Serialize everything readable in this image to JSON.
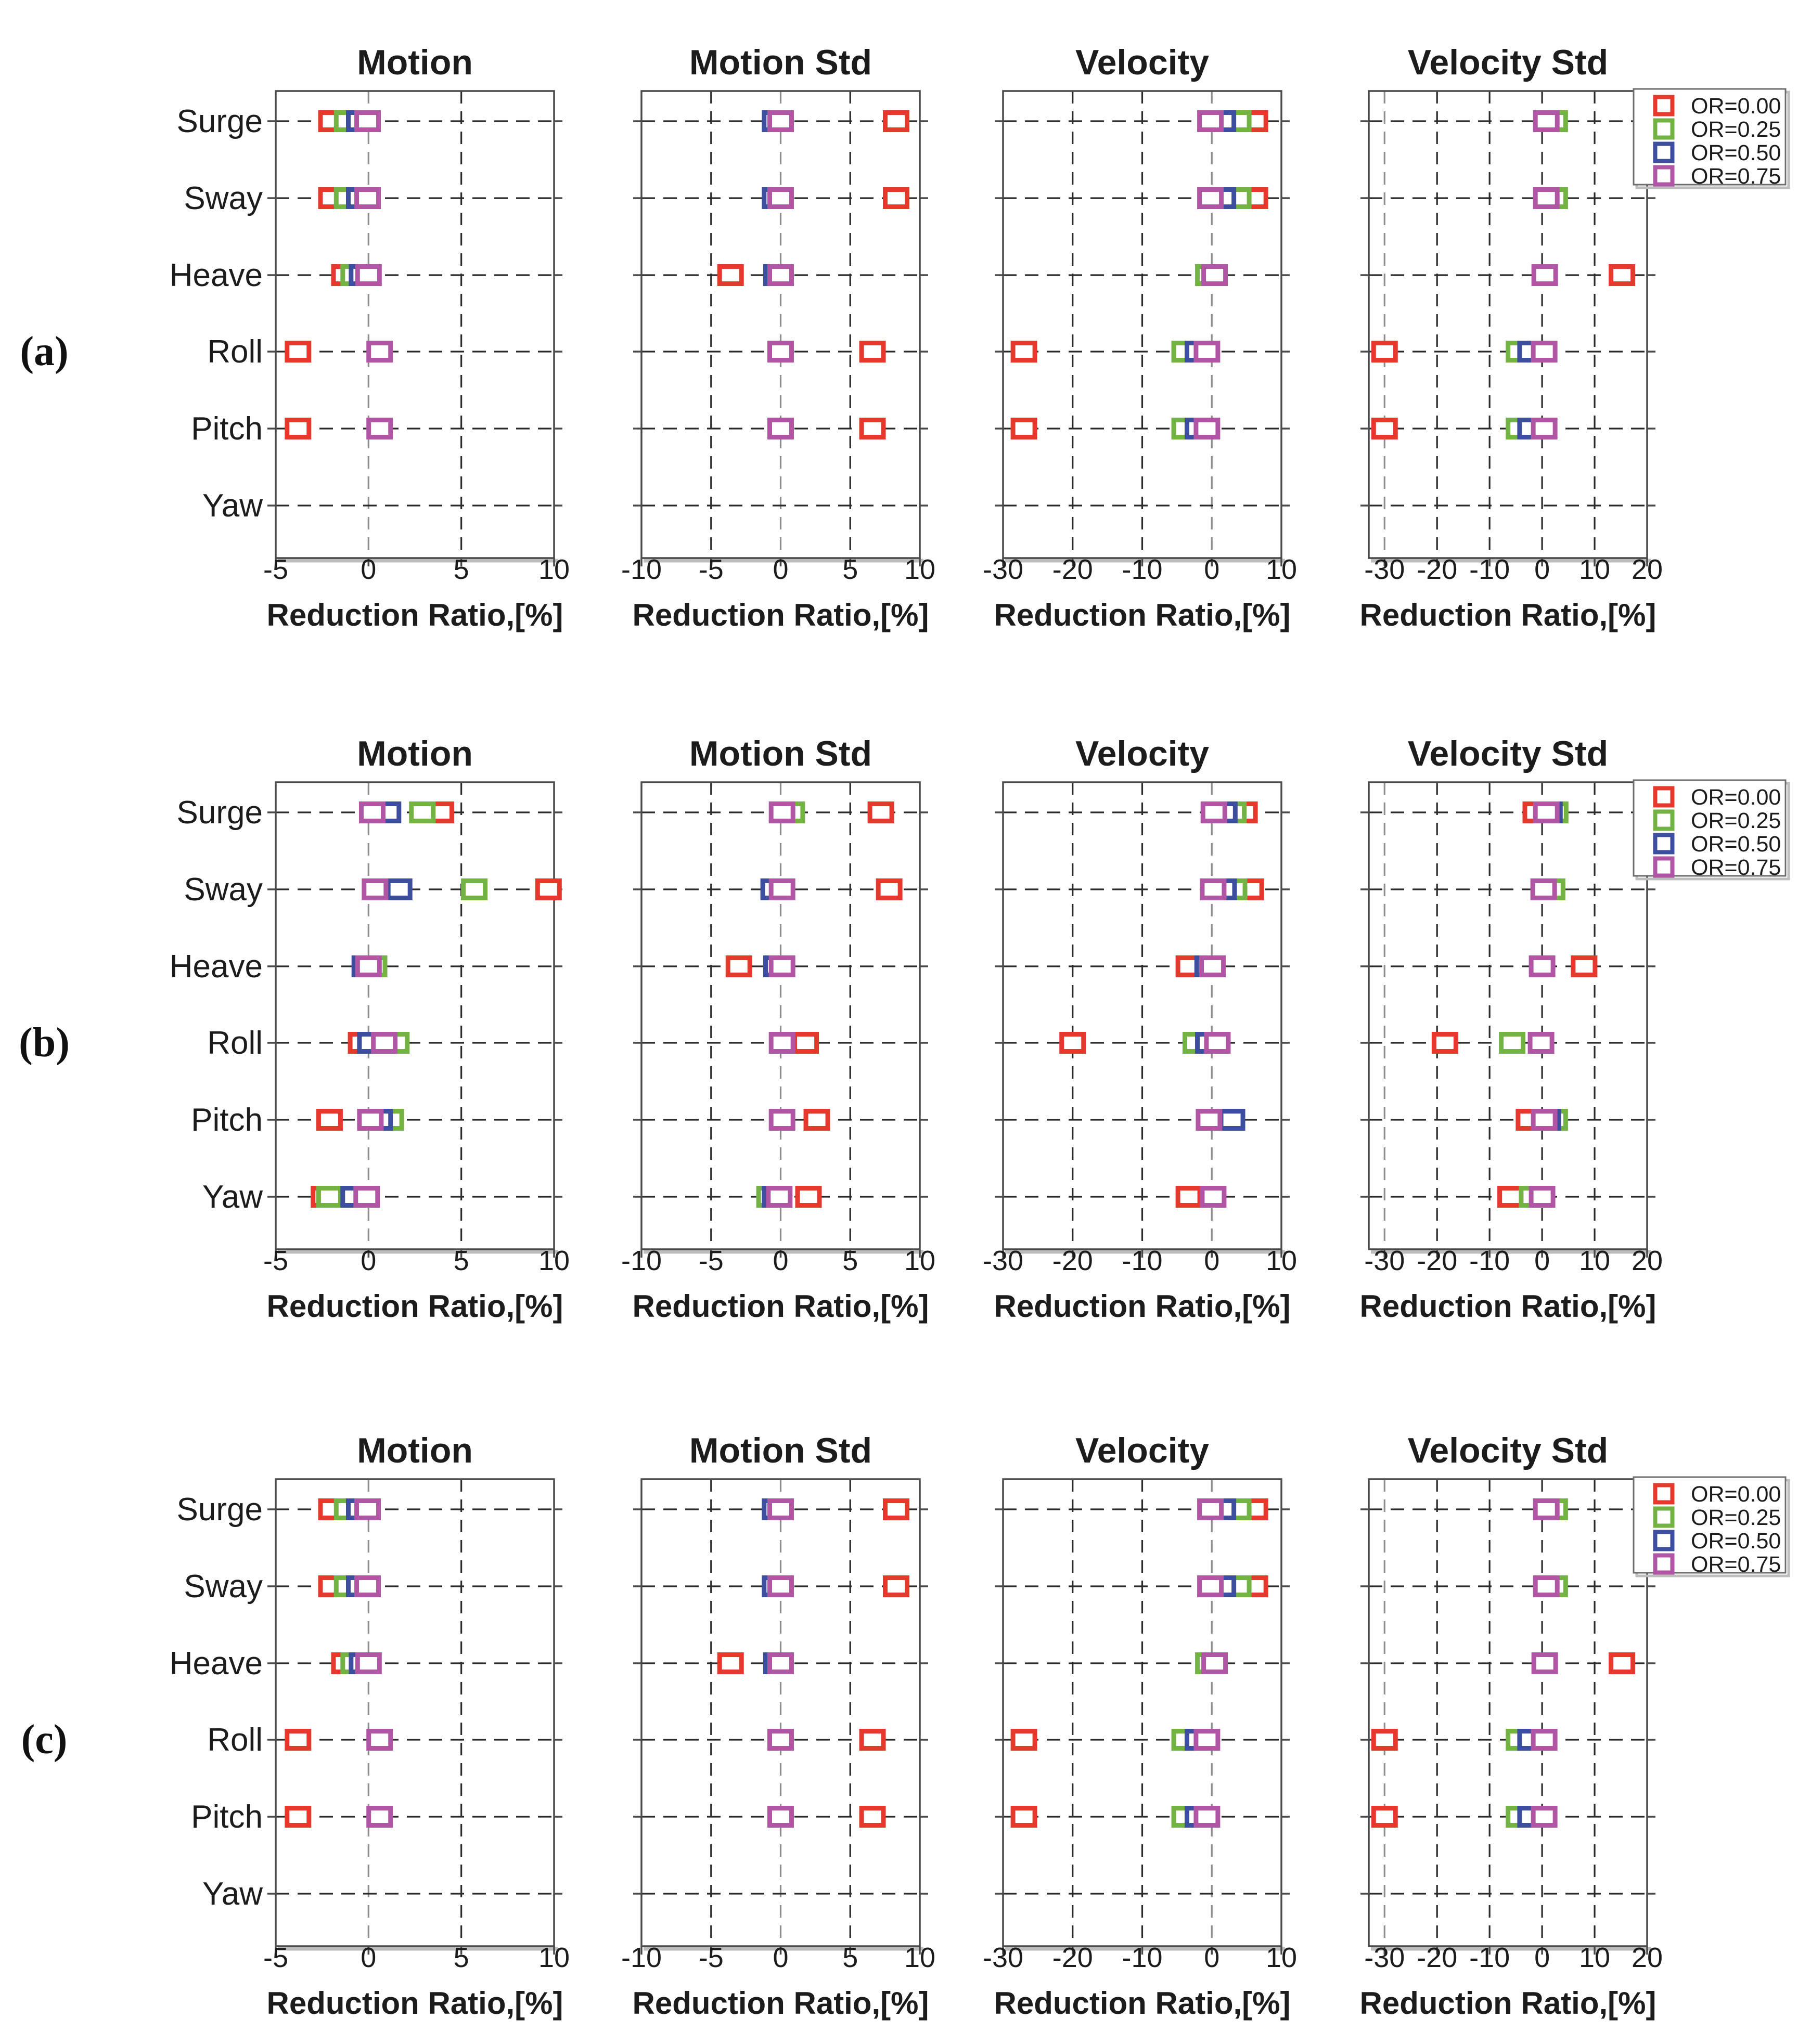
{
  "figure_title": "",
  "xlabel": "Reduction Ratio,[%]",
  "categories": [
    "Surge",
    "Sway",
    "Heave",
    "Roll",
    "Pitch",
    "Yaw"
  ],
  "series": [
    {
      "label": "OR=0.00",
      "color": "#e6392e"
    },
    {
      "label": "OR=0.25",
      "color": "#72b344"
    },
    {
      "label": "OR=0.50",
      "color": "#3d4e9e"
    },
    {
      "label": "OR=0.75",
      "color": "#b156a4"
    }
  ],
  "colors": {
    "axis": "#4a4a4a",
    "grid_black": "#2b2b2b",
    "grid_gray": "#8e8e8e",
    "text": "#1c1c1c",
    "legend_border": "#6e6e6e",
    "legend_shadow": "#bdbdbd",
    "marker_fill": "#ffffff",
    "background": "#ffffff"
  },
  "chart_data": [
    {
      "row_label": "(a)",
      "type": "scatter",
      "panels": [
        {
          "title": "Motion",
          "xlim": [
            -5,
            10
          ],
          "xticks": [
            -5,
            0,
            5,
            10
          ],
          "grid_black": [
            5
          ],
          "grid_gray": [
            0
          ],
          "points": {
            "Surge": [
              -2.0,
              -1.15,
              -0.5,
              -0.05
            ],
            "Sway": [
              -2.0,
              -1.15,
              -0.5,
              -0.05
            ],
            "Heave": [
              -1.3,
              -0.8,
              -0.35,
              0.0
            ],
            "Roll": [
              -3.8,
              null,
              null,
              0.6
            ],
            "Pitch": [
              -3.8,
              null,
              null,
              0.6
            ],
            "Yaw": [
              null,
              null,
              null,
              null
            ]
          }
        },
        {
          "title": "Motion Std",
          "xlim": [
            -10,
            10
          ],
          "xticks": [
            -10,
            -5,
            0,
            5,
            10
          ],
          "grid_black": [
            -5,
            5
          ],
          "grid_gray": [
            0
          ],
          "points": {
            "Surge": [
              8.3,
              null,
              -0.4,
              0.0
            ],
            "Sway": [
              8.3,
              null,
              -0.4,
              0.0
            ],
            "Heave": [
              -3.6,
              null,
              -0.3,
              0.0
            ],
            "Roll": [
              6.6,
              null,
              null,
              0.0
            ],
            "Pitch": [
              6.6,
              null,
              null,
              0.0
            ],
            "Yaw": [
              null,
              null,
              null,
              null
            ]
          }
        },
        {
          "title": "Velocity",
          "xlim": [
            -30,
            10
          ],
          "xticks": [
            -30,
            -20,
            -10,
            0,
            10
          ],
          "grid_black": [
            -20,
            -10
          ],
          "grid_gray": [
            0
          ],
          "points": {
            "Surge": [
              6.2,
              3.8,
              1.6,
              -0.2
            ],
            "Sway": [
              6.2,
              3.8,
              1.6,
              -0.2
            ],
            "Heave": [
              null,
              -0.5,
              null,
              0.4
            ],
            "Roll": [
              -27.0,
              -3.9,
              -2.0,
              -0.7
            ],
            "Pitch": [
              -27.0,
              -3.9,
              -2.0,
              -0.7
            ],
            "Yaw": [
              null,
              null,
              null,
              null
            ]
          }
        },
        {
          "title": "Velocity Std",
          "xlim": [
            -33,
            20
          ],
          "xticks": [
            -30,
            -20,
            -10,
            0,
            10,
            20
          ],
          "grid_black": [
            -20,
            -10,
            0,
            10
          ],
          "grid_gray": [
            -30
          ],
          "points": {
            "Surge": [
              null,
              2.4,
              null,
              0.8
            ],
            "Sway": [
              null,
              2.4,
              null,
              0.8
            ],
            "Heave": [
              15.2,
              null,
              null,
              0.5
            ],
            "Roll": [
              -30.0,
              -4.4,
              -2.2,
              0.4
            ],
            "Pitch": [
              -30.0,
              -4.4,
              -2.2,
              0.4
            ],
            "Yaw": [
              null,
              null,
              null,
              null
            ]
          }
        }
      ]
    },
    {
      "row_label": "(b)",
      "type": "scatter",
      "panels": [
        {
          "title": "Motion",
          "xlim": [
            -5,
            10
          ],
          "xticks": [
            -5,
            0,
            5,
            10
          ],
          "grid_black": [
            5
          ],
          "grid_gray": [
            0
          ],
          "points": {
            "Surge": [
              3.9,
              2.9,
              1.05,
              0.2
            ],
            "Sway": [
              9.7,
              5.7,
              1.65,
              0.35
            ],
            "Heave": [
              null,
              0.3,
              -0.2,
              0.0
            ],
            "Roll": [
              -0.4,
              1.5,
              0.1,
              0.85
            ],
            "Pitch": [
              -2.1,
              1.2,
              0.6,
              0.1
            ],
            "Yaw": [
              -2.4,
              -2.1,
              -0.8,
              -0.1
            ]
          }
        },
        {
          "title": "Motion Std",
          "xlim": [
            -10,
            10
          ],
          "xticks": [
            -10,
            -5,
            0,
            5,
            10
          ],
          "grid_black": [
            -5,
            5
          ],
          "grid_gray": [
            0
          ],
          "points": {
            "Surge": [
              7.2,
              0.8,
              null,
              0.1
            ],
            "Sway": [
              7.8,
              null,
              -0.5,
              0.1
            ],
            "Heave": [
              -3.0,
              null,
              -0.3,
              0.1
            ],
            "Roll": [
              1.8,
              null,
              null,
              0.1
            ],
            "Pitch": [
              2.6,
              null,
              null,
              0.1
            ],
            "Yaw": [
              2.0,
              -0.8,
              -0.4,
              -0.1
            ]
          }
        },
        {
          "title": "Velocity",
          "xlim": [
            -30,
            10
          ],
          "xticks": [
            -30,
            -20,
            -10,
            0,
            10
          ],
          "grid_black": [
            -20,
            -10
          ],
          "grid_gray": [
            0
          ],
          "points": {
            "Surge": [
              4.7,
              3.1,
              1.8,
              0.3
            ],
            "Sway": [
              5.6,
              3.2,
              1.7,
              0.2
            ],
            "Heave": [
              -3.3,
              null,
              -0.6,
              0.1
            ],
            "Roll": [
              -20.0,
              -2.3,
              -0.5,
              0.8
            ],
            "Pitch": [
              null,
              null,
              2.9,
              -0.4
            ],
            "Yaw": [
              -3.3,
              null,
              null,
              0.2
            ]
          }
        },
        {
          "title": "Velocity Std",
          "xlim": [
            -33,
            20
          ],
          "xticks": [
            -30,
            -20,
            -10,
            0,
            10,
            20
          ],
          "grid_black": [
            -20,
            -10,
            0,
            10
          ],
          "grid_gray": [
            -30
          ],
          "points": {
            "Surge": [
              -1.2,
              2.5,
              1.4,
              0.8
            ],
            "Sway": [
              null,
              1.9,
              null,
              0.3
            ],
            "Heave": [
              8.0,
              null,
              null,
              0.0
            ],
            "Roll": [
              -18.5,
              -5.7,
              null,
              -0.2
            ],
            "Pitch": [
              -2.5,
              2.4,
              1.1,
              0.4
            ],
            "Yaw": [
              -6.0,
              -1.9,
              null,
              0.0
            ]
          }
        }
      ]
    },
    {
      "row_label": "(c)",
      "type": "scatter",
      "panels": [
        {
          "title": "Motion",
          "xlim": [
            -5,
            10
          ],
          "xticks": [
            -5,
            0,
            5,
            10
          ],
          "grid_black": [
            5
          ],
          "grid_gray": [
            0
          ],
          "points": {
            "Surge": [
              -2.0,
              -1.15,
              -0.5,
              -0.05
            ],
            "Sway": [
              -2.0,
              -1.15,
              -0.5,
              -0.05
            ],
            "Heave": [
              -1.3,
              -0.8,
              -0.35,
              0.0
            ],
            "Roll": [
              -3.8,
              null,
              null,
              0.6
            ],
            "Pitch": [
              -3.8,
              null,
              null,
              0.6
            ],
            "Yaw": [
              null,
              null,
              null,
              null
            ]
          }
        },
        {
          "title": "Motion Std",
          "xlim": [
            -10,
            10
          ],
          "xticks": [
            -10,
            -5,
            0,
            5,
            10
          ],
          "grid_black": [
            -5,
            5
          ],
          "grid_gray": [
            0
          ],
          "points": {
            "Surge": [
              8.3,
              null,
              -0.4,
              0.0
            ],
            "Sway": [
              8.3,
              null,
              -0.4,
              0.0
            ],
            "Heave": [
              -3.6,
              null,
              -0.3,
              0.0
            ],
            "Roll": [
              6.6,
              null,
              null,
              0.0
            ],
            "Pitch": [
              6.6,
              null,
              null,
              0.0
            ],
            "Yaw": [
              null,
              null,
              null,
              null
            ]
          }
        },
        {
          "title": "Velocity",
          "xlim": [
            -30,
            10
          ],
          "xticks": [
            -30,
            -20,
            -10,
            0,
            10
          ],
          "grid_black": [
            -20,
            -10
          ],
          "grid_gray": [
            0
          ],
          "points": {
            "Surge": [
              6.2,
              3.8,
              1.6,
              -0.2
            ],
            "Sway": [
              6.2,
              3.8,
              1.6,
              -0.2
            ],
            "Heave": [
              null,
              -0.5,
              null,
              0.4
            ],
            "Roll": [
              -27.0,
              -3.9,
              -2.0,
              -0.7
            ],
            "Pitch": [
              -27.0,
              -3.9,
              -2.0,
              -0.7
            ],
            "Yaw": [
              null,
              null,
              null,
              null
            ]
          }
        },
        {
          "title": "Velocity Std",
          "xlim": [
            -33,
            20
          ],
          "xticks": [
            -30,
            -20,
            -10,
            0,
            10,
            20
          ],
          "grid_black": [
            -20,
            -10,
            0,
            10
          ],
          "grid_gray": [
            -30
          ],
          "points": {
            "Surge": [
              null,
              2.4,
              null,
              0.8
            ],
            "Sway": [
              null,
              2.4,
              null,
              0.8
            ],
            "Heave": [
              15.2,
              null,
              null,
              0.5
            ],
            "Roll": [
              -30.0,
              -4.4,
              -2.2,
              0.4
            ],
            "Pitch": [
              -30.0,
              -4.4,
              -2.2,
              0.4
            ],
            "Yaw": [
              null,
              null,
              null,
              null
            ]
          }
        }
      ]
    }
  ]
}
